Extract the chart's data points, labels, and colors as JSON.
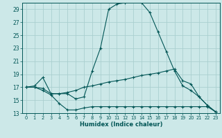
{
  "xlabel": "Humidex (Indice chaleur)",
  "bg_color": "#cce8e8",
  "grid_color": "#aacfcf",
  "line_color": "#005555",
  "xlim": [
    -0.5,
    23.5
  ],
  "ylim": [
    13,
    30
  ],
  "xticks": [
    0,
    1,
    2,
    3,
    4,
    5,
    6,
    7,
    8,
    9,
    10,
    11,
    12,
    13,
    14,
    15,
    16,
    17,
    18,
    19,
    20,
    21,
    22,
    23
  ],
  "yticks": [
    13,
    15,
    17,
    19,
    21,
    23,
    25,
    27,
    29
  ],
  "line1_x": [
    0,
    1,
    2,
    3,
    4,
    5,
    6,
    7,
    8,
    9,
    10,
    11,
    12,
    13,
    14,
    15,
    16,
    17,
    18,
    19,
    20,
    21,
    22,
    23
  ],
  "line1_y": [
    17.0,
    17.2,
    18.5,
    16.0,
    16.0,
    16.0,
    15.2,
    15.5,
    19.5,
    23.0,
    29.0,
    29.8,
    30.0,
    30.2,
    30.0,
    28.5,
    25.5,
    22.5,
    19.5,
    17.2,
    16.5,
    15.5,
    14.2,
    13.2
  ],
  "line2_x": [
    0,
    1,
    2,
    3,
    4,
    5,
    6,
    7,
    8,
    9,
    10,
    11,
    12,
    13,
    14,
    15,
    16,
    17,
    18,
    19,
    20,
    21,
    22,
    23
  ],
  "line2_y": [
    17.0,
    17.0,
    16.8,
    16.0,
    16.0,
    16.2,
    16.5,
    17.0,
    17.2,
    17.5,
    17.8,
    18.0,
    18.2,
    18.5,
    18.8,
    19.0,
    19.2,
    19.5,
    19.8,
    18.0,
    17.5,
    15.5,
    14.2,
    13.2
  ],
  "line3_x": [
    0,
    1,
    2,
    3,
    4,
    5,
    6,
    7,
    8,
    9,
    10,
    11,
    12,
    13,
    14,
    15,
    16,
    17,
    18,
    19,
    20,
    21,
    22,
    23
  ],
  "line3_y": [
    17.0,
    17.0,
    16.5,
    15.8,
    14.5,
    13.5,
    13.5,
    13.8,
    14.0,
    14.0,
    14.0,
    14.0,
    14.0,
    14.0,
    14.0,
    14.0,
    14.0,
    14.0,
    14.0,
    14.0,
    14.0,
    14.0,
    14.0,
    13.2
  ]
}
